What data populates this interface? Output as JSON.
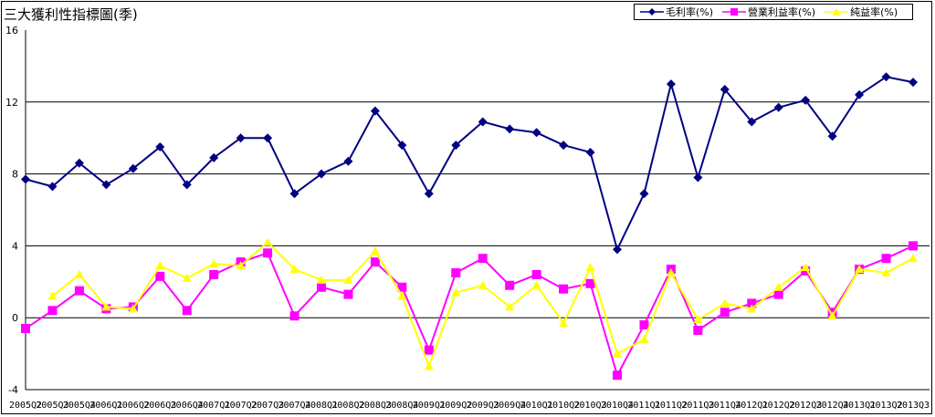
{
  "title": "三大獲利性指標圖(季)",
  "chart_data": {
    "type": "line",
    "title": "三大獲利性指標圖(季)",
    "ylim": [
      -4,
      16
    ],
    "yticks": [
      16,
      12,
      8,
      4,
      0,
      -4
    ],
    "grid": true,
    "legend_position": "top-right",
    "categories": [
      "2005Q2",
      "2005Q3",
      "2005Q4",
      "2006Q1",
      "2006Q2",
      "2006Q3",
      "2006Q4",
      "2007Q1",
      "2007Q2",
      "2007Q3",
      "2007Q4",
      "2008Q1",
      "2008Q2",
      "2008Q3",
      "2008Q4",
      "2009Q1",
      "2009Q2",
      "2009Q3",
      "2009Q4",
      "2010Q1",
      "2010Q2",
      "2010Q3",
      "2010Q4",
      "2011Q1",
      "2011Q2",
      "2011Q3",
      "2011Q4",
      "2012Q1",
      "2012Q2",
      "2012Q3",
      "2012Q4",
      "2013Q1",
      "2013Q2",
      "2013Q3"
    ],
    "series": [
      {
        "name": "毛利率(%)",
        "color": "#000080",
        "marker": "diamond",
        "values": [
          7.7,
          7.3,
          8.6,
          7.4,
          8.3,
          9.5,
          7.4,
          8.9,
          10.0,
          10.0,
          6.9,
          8.0,
          8.7,
          11.5,
          9.6,
          6.9,
          9.6,
          10.9,
          10.5,
          10.3,
          9.6,
          9.2,
          3.8,
          6.9,
          13.0,
          7.8,
          12.7,
          10.9,
          11.7,
          12.1,
          10.1,
          12.4,
          13.4,
          13.1
        ]
      },
      {
        "name": "營業利益率(%)",
        "color": "#ff00ff",
        "marker": "square",
        "values": [
          -0.6,
          0.4,
          1.5,
          0.5,
          0.6,
          2.3,
          0.4,
          2.4,
          3.1,
          3.6,
          0.1,
          1.7,
          1.3,
          3.1,
          1.7,
          -1.8,
          2.5,
          3.3,
          1.8,
          2.4,
          1.6,
          1.9,
          -3.2,
          -0.4,
          2.7,
          -0.7,
          0.3,
          0.8,
          1.3,
          2.6,
          0.3,
          2.7,
          3.3,
          4.0
        ]
      },
      {
        "name": "純益率(%)",
        "color": "#ffff00",
        "marker": "triangle",
        "values": [
          null,
          1.2,
          2.4,
          0.6,
          0.5,
          2.9,
          2.2,
          3.0,
          2.9,
          4.2,
          2.7,
          2.1,
          2.1,
          3.7,
          1.2,
          -2.7,
          1.4,
          1.8,
          0.6,
          1.8,
          -0.3,
          2.8,
          -2.0,
          -1.2,
          2.5,
          -0.1,
          0.8,
          0.5,
          1.7,
          2.8,
          0.1,
          2.7,
          2.5,
          3.3
        ]
      }
    ]
  }
}
